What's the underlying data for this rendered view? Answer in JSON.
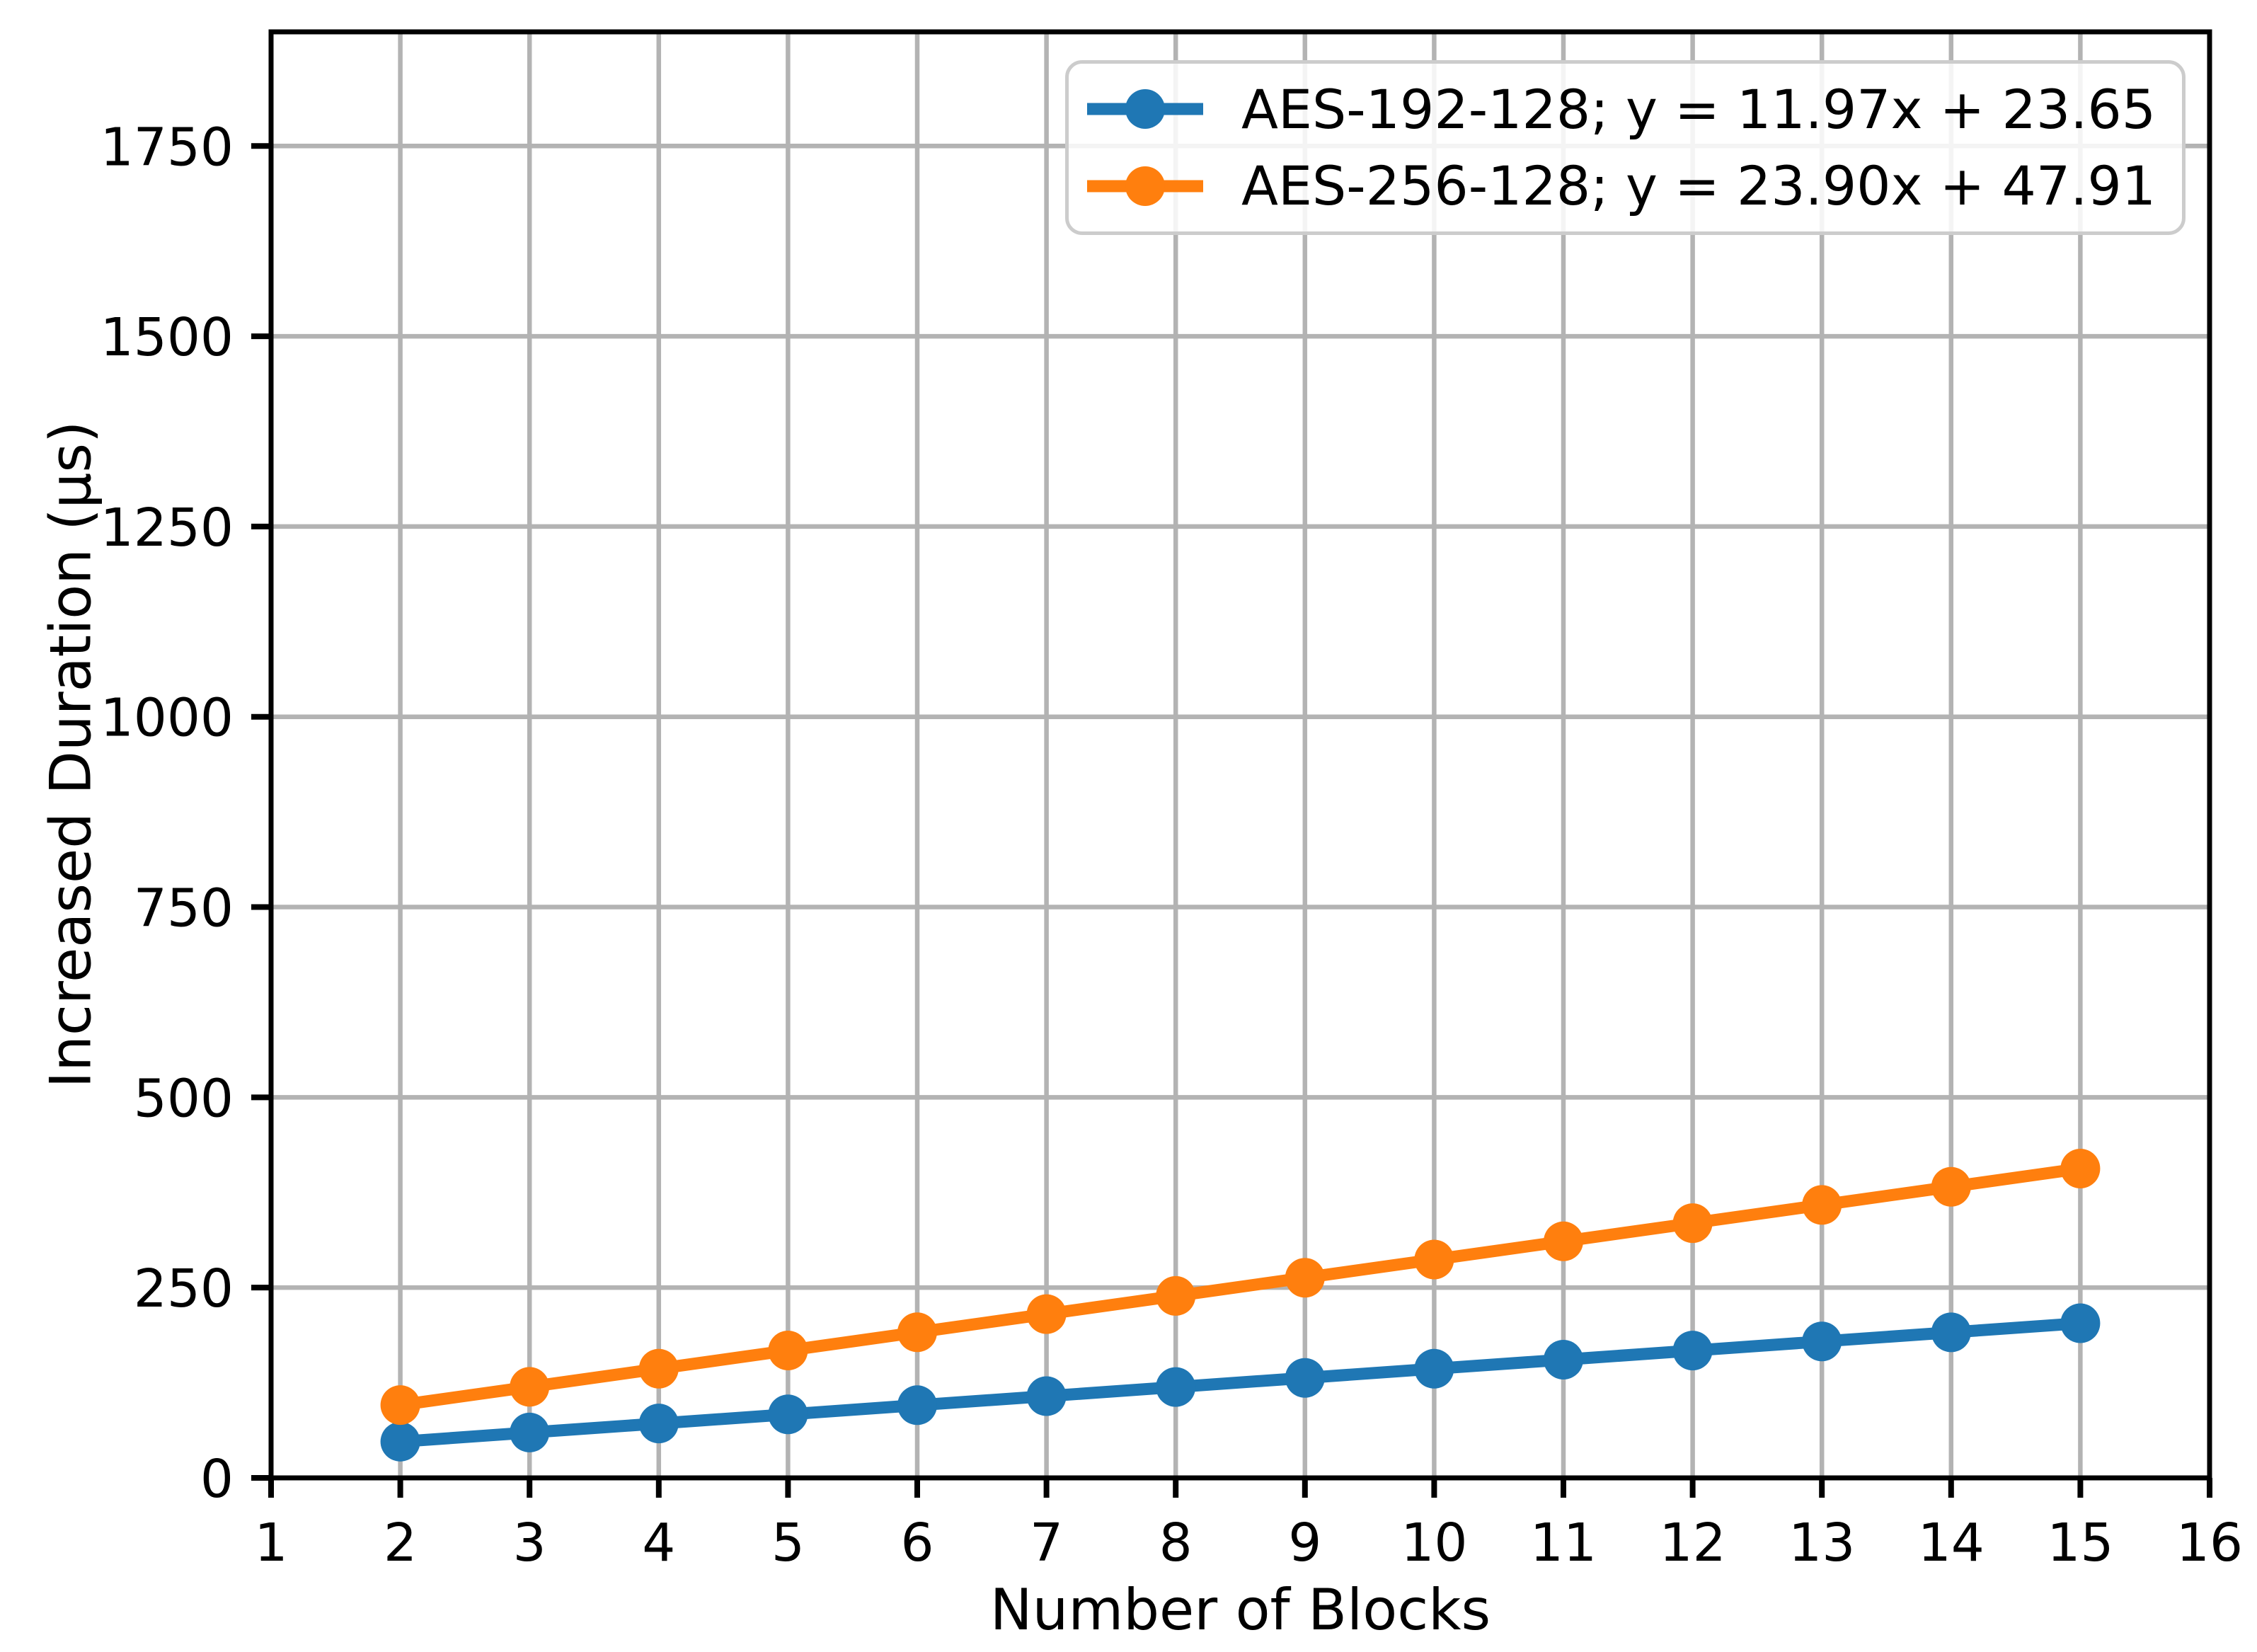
{
  "chart_data": {
    "type": "line",
    "title": "",
    "xlabel": "Number of Blocks",
    "ylabel": "Increased Duration (µs)",
    "xlim": [
      1,
      16
    ],
    "ylim": [
      0,
      1900
    ],
    "xticks": [
      1,
      2,
      3,
      4,
      5,
      6,
      7,
      8,
      9,
      10,
      11,
      12,
      13,
      14,
      15,
      16
    ],
    "yticks": [
      0,
      250,
      500,
      750,
      1000,
      1250,
      1500,
      1750
    ],
    "grid": true,
    "grid_color": "#b3b3b3",
    "axis_color": "#000000",
    "legend_position": "upper right",
    "legend_border_color": "#cccccc",
    "x": [
      2,
      3,
      4,
      5,
      6,
      7,
      8,
      9,
      10,
      11,
      12,
      13,
      14,
      15
    ],
    "series": [
      {
        "name": "aes-192-128",
        "label": "AES-192-128; y = 11.97x + 23.65",
        "color": "#1f77b4",
        "fit": {
          "slope": 11.97,
          "intercept": 23.65
        },
        "values": [
          47.6,
          59.6,
          71.5,
          83.5,
          95.5,
          107.4,
          119.4,
          131.4,
          143.4,
          155.3,
          167.3,
          179.3,
          191.2,
          203.2
        ]
      },
      {
        "name": "aes-256-128",
        "label": "AES-256-128; y = 23.90x + 47.91",
        "color": "#ff7f0e",
        "fit": {
          "slope": 23.9,
          "intercept": 47.91
        },
        "values": [
          95.7,
          119.6,
          143.5,
          167.4,
          191.3,
          215.2,
          239.1,
          263.0,
          286.9,
          310.8,
          334.7,
          358.6,
          382.5,
          406.4
        ]
      }
    ]
  }
}
